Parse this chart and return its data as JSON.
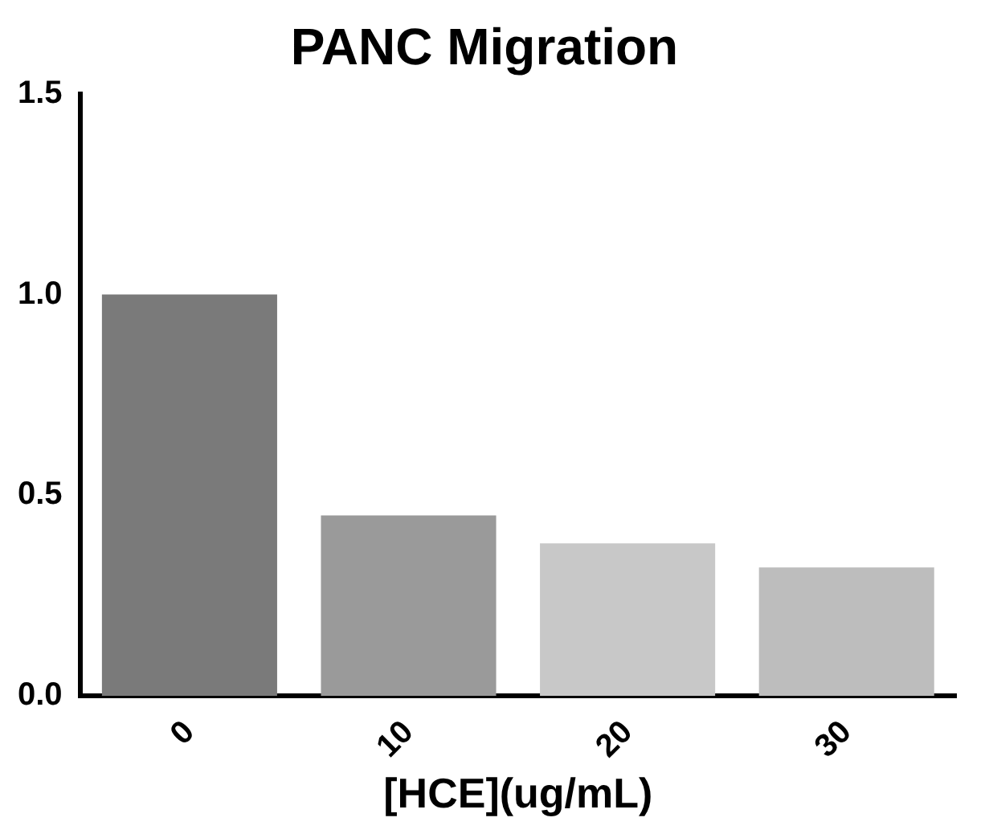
{
  "chart_data": {
    "type": "bar",
    "title": "PANC Migration",
    "xlabel": "[HCE](ug/mL)",
    "categories": [
      "0",
      "10",
      "20",
      "30"
    ],
    "values": [
      1.0,
      0.45,
      0.38,
      0.32
    ],
    "colors": [
      "#7a7a7a",
      "#9a9a9a",
      "#c8c8c8",
      "#bdbdbd"
    ],
    "ylim": [
      0,
      1.5
    ],
    "yticks": [
      {
        "value": 0,
        "label": "0.0"
      },
      {
        "value": 0.5,
        "label": "0.5"
      },
      {
        "value": 1,
        "label": "1.0"
      },
      {
        "value": 1.5,
        "label": "1.5"
      }
    ],
    "grid": false,
    "legend": false
  }
}
